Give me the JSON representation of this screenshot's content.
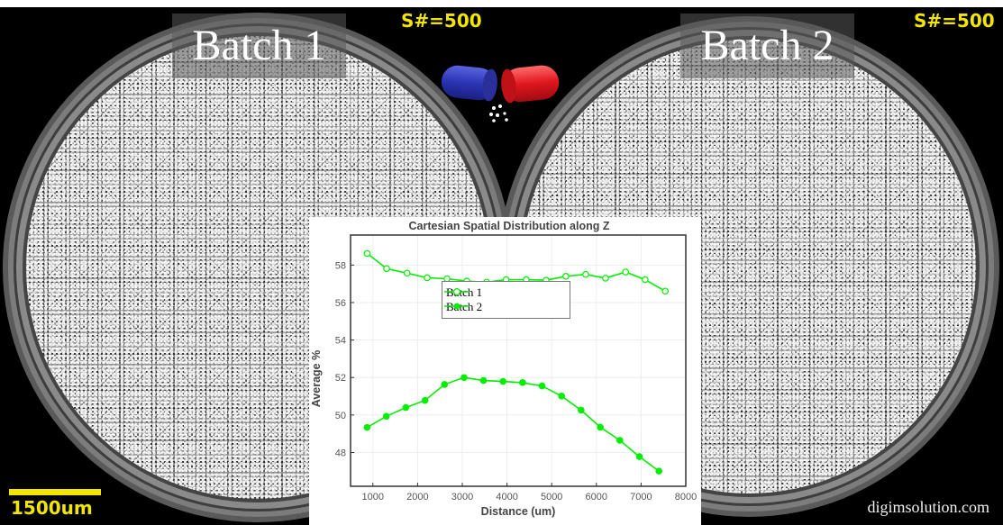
{
  "labels": {
    "left_batch": "Batch 1",
    "right_batch": "Batch 2",
    "left_snum": "S#=500",
    "right_snum": "S#=500",
    "scale": "1500um",
    "watermark": "digimsolution.com"
  },
  "icons": {
    "capsule": "capsule-icon"
  },
  "colors": {
    "series": "#00ee00",
    "annotation_yellow": "#f2e600",
    "capsule_left": "#2b35b5",
    "capsule_right": "#e0161e"
  },
  "chart_data": {
    "type": "line",
    "title": "Cartesian Spatial Distribution along Z",
    "xlabel": "Distance (um)",
    "ylabel": "Average %",
    "xlim": [
      500,
      8000
    ],
    "ylim": [
      46.2,
      59.6
    ],
    "xticks": [
      1000,
      2000,
      3000,
      4000,
      5000,
      6000,
      7000,
      8000
    ],
    "yticks": [
      48,
      50,
      52,
      54,
      56,
      58
    ],
    "grid": true,
    "legend_position": "upper center",
    "series": [
      {
        "name": "Batch 1",
        "marker": "open-circle",
        "x": [
          870,
          1307,
          1763,
          2214,
          2657,
          3100,
          3543,
          3980,
          4430,
          4874,
          5317,
          5761,
          6204,
          6654,
          7090,
          7541
        ],
        "values": [
          58.62,
          57.81,
          57.57,
          57.32,
          57.27,
          57.14,
          57.09,
          57.22,
          57.22,
          57.19,
          57.4,
          57.5,
          57.3,
          57.63,
          57.22,
          56.61
        ]
      },
      {
        "name": "Batch 2",
        "marker": "filled-circle",
        "x": [
          870,
          1300,
          1736,
          2166,
          2602,
          3039,
          3475,
          3912,
          4349,
          4785,
          5222,
          5658,
          6088,
          6525,
          6962,
          7399
        ],
        "values": [
          49.34,
          49.93,
          50.4,
          50.78,
          51.63,
          52.0,
          51.84,
          51.79,
          51.73,
          51.55,
          51.01,
          50.26,
          49.35,
          48.65,
          47.78,
          47.01
        ]
      }
    ]
  }
}
